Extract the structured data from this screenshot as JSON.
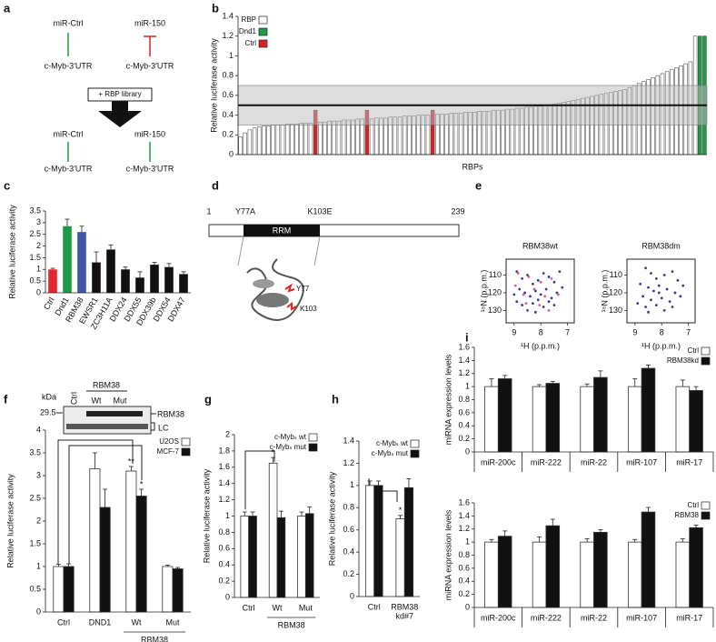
{
  "diagram_a": {
    "panel": "a",
    "top": {
      "left": "miR-Ctrl",
      "right": "miR-150"
    },
    "targets_top": [
      "c-Myb-3′UTR",
      "c-Myb-3′UTR"
    ],
    "step": "+ RBP library",
    "bottom": {
      "left": "miR-Ctrl",
      "right": "miR-150"
    },
    "targets_bottom": [
      "c-Myb-3′UTR",
      "c-Myb-3′UTR"
    ]
  },
  "diagram_d": {
    "panel": "d",
    "start": "1",
    "mutations": [
      "Y77A",
      "K103E"
    ],
    "end": "239",
    "domain": "RRM",
    "residues": [
      "Y77",
      "K103"
    ]
  },
  "blot_f": {
    "header": "RBM38",
    "lanes": [
      "Ctrl",
      "Wt",
      "Mut"
    ],
    "unit": "kDa",
    "marker": "29.5",
    "bands": [
      "RBM38",
      "LC"
    ]
  },
  "chart_data": [
    {
      "panel": "b",
      "type": "bar",
      "ylabel": "Relative luciferase activity",
      "xlabel": "RBPs",
      "ylim": [
        0,
        1.4
      ],
      "yticks": [
        0,
        0.2,
        0.4,
        0.6,
        0.8,
        1,
        1.2,
        1.4
      ],
      "reference_line": 0.5,
      "reference_band": [
        0.3,
        0.7
      ],
      "series": [
        {
          "name": "RBP",
          "color": "#ffffff",
          "values": [
            0.18,
            0.22,
            0.25,
            0.27,
            0.28,
            0.29,
            0.29,
            0.3,
            0.3,
            0.3,
            0.31,
            0.31,
            0.31,
            0.32,
            0.32,
            0.32,
            null,
            0.33,
            0.33,
            0.34,
            0.34,
            0.34,
            0.35,
            0.35,
            0.35,
            0.36,
            0.36,
            null,
            0.36,
            0.37,
            0.37,
            0.37,
            0.38,
            0.38,
            0.38,
            0.39,
            0.39,
            0.39,
            0.4,
            0.4,
            0.4,
            null,
            0.41,
            0.41,
            0.41,
            0.42,
            0.42,
            0.42,
            0.43,
            0.43,
            0.43,
            0.44,
            0.44,
            0.44,
            0.45,
            0.45,
            0.45,
            0.46,
            0.46,
            0.47,
            0.47,
            0.48,
            0.48,
            0.49,
            0.49,
            0.5,
            0.5,
            0.51,
            0.52,
            0.53,
            0.54,
            0.55,
            0.56,
            0.57,
            0.58,
            0.59,
            0.6,
            0.61,
            0.62,
            0.63,
            0.64,
            0.65,
            0.66,
            0.68,
            0.7,
            0.72,
            0.74,
            0.76,
            0.78,
            0.8,
            0.82,
            0.84,
            0.86,
            0.88,
            0.9,
            0.92,
            0.94,
            1.2,
            null,
            null
          ]
        },
        {
          "name": "Dnd1",
          "color": "#1f9a47",
          "values": [
            null,
            null,
            null,
            null,
            null,
            null,
            null,
            null,
            null,
            null,
            null,
            null,
            null,
            null,
            null,
            null,
            null,
            null,
            null,
            null,
            null,
            null,
            null,
            null,
            null,
            null,
            null,
            null,
            null,
            null,
            null,
            null,
            null,
            null,
            null,
            null,
            null,
            null,
            null,
            null,
            null,
            null,
            null,
            null,
            null,
            null,
            null,
            null,
            null,
            null,
            null,
            null,
            null,
            null,
            null,
            null,
            null,
            null,
            null,
            null,
            null,
            null,
            null,
            null,
            null,
            null,
            null,
            null,
            null,
            null,
            null,
            null,
            null,
            null,
            null,
            null,
            null,
            null,
            null,
            null,
            null,
            null,
            null,
            null,
            null,
            null,
            null,
            null,
            null,
            null,
            null,
            null,
            null,
            null,
            null,
            null,
            null,
            null,
            1.2,
            1.2
          ]
        },
        {
          "name": "Ctrl",
          "color": "#d9232a",
          "values": [
            null,
            null,
            null,
            null,
            null,
            null,
            null,
            null,
            null,
            null,
            null,
            null,
            null,
            null,
            null,
            null,
            0.45,
            null,
            null,
            null,
            null,
            null,
            null,
            null,
            null,
            null,
            null,
            0.45,
            null,
            null,
            null,
            null,
            null,
            null,
            null,
            null,
            null,
            null,
            null,
            null,
            null,
            0.45,
            null,
            null,
            null,
            null,
            null,
            null,
            null,
            null,
            null,
            null,
            null,
            null,
            null,
            null,
            null,
            null,
            null,
            null,
            null,
            null,
            null,
            null,
            null,
            null,
            null,
            null,
            null,
            null,
            null,
            null,
            null,
            null,
            null,
            null,
            null,
            null,
            null,
            null,
            null,
            null,
            null,
            null,
            null,
            null,
            null,
            null,
            null,
            null,
            null,
            null,
            null,
            null,
            null,
            null,
            null,
            null,
            null,
            null
          ]
        }
      ]
    },
    {
      "panel": "c",
      "type": "bar",
      "ylabel": "Relative luciferase activity",
      "categories": [
        "Ctrl",
        "Dnd1",
        "RBM38",
        "EWSR1",
        "ZC3H11A",
        "DDX24",
        "DDX55",
        "DDX39b",
        "DDX54",
        "DDX47"
      ],
      "values": [
        1.0,
        2.85,
        2.6,
        1.3,
        1.85,
        1.0,
        0.65,
        1.2,
        1.1,
        0.8
      ],
      "errors": [
        0.05,
        0.3,
        0.25,
        0.45,
        0.2,
        0.1,
        0.25,
        0.1,
        0.15,
        0.1
      ],
      "colors": [
        "#e4262c",
        "#1f9a47",
        "#3d56a6",
        "#111111",
        "#111111",
        "#111111",
        "#111111",
        "#111111",
        "#111111",
        "#111111"
      ],
      "ylim": [
        0,
        3.5
      ],
      "yticks": [
        0,
        0.5,
        1,
        1.5,
        2,
        2.5,
        3,
        3.5
      ]
    },
    {
      "panel": "e",
      "type": "scatter",
      "title": "RBM38wt",
      "xlabel": "¹H (p.p.m.)",
      "ylabel": "¹⁵N (p.p.m.)",
      "xlim": [
        9.3,
        6.75
      ],
      "ylim": [
        137,
        101
      ],
      "xticks": [
        9,
        8,
        7
      ],
      "yticks": [
        110,
        120,
        130
      ],
      "series": [
        {
          "color": "#3a3a9a",
          "x": [
            8.9,
            8.7,
            8.5,
            8.3,
            8.1,
            7.9,
            7.7,
            7.5,
            7.3,
            8.8,
            8.6,
            8.4,
            8.2,
            8.0,
            7.8,
            7.6,
            7.4,
            8.9,
            8.7,
            8.3,
            8.1,
            7.9,
            7.7,
            8.5,
            8.2,
            7.5,
            9.0,
            7.2
          ],
          "values": [
            108,
            112,
            110,
            115,
            113,
            109,
            111,
            114,
            108,
            118,
            120,
            122,
            119,
            121,
            118,
            123,
            120,
            125,
            127,
            126,
            124,
            128,
            125,
            130,
            131,
            127,
            121,
            117
          ]
        },
        {
          "color": "#d9608a",
          "x": [
            8.85,
            8.45,
            8.0,
            7.6,
            8.65,
            8.25,
            7.85,
            8.55,
            8.05,
            7.7,
            7.35,
            8.95
          ],
          "values": [
            109,
            111,
            114,
            112,
            121,
            118,
            122,
            126,
            127,
            130,
            121,
            116
          ]
        }
      ]
    },
    {
      "type": "scatter",
      "title": "RBM38dm",
      "xlabel": "¹H (p.p.m.)",
      "ylabel": "¹⁵N (p.p.m.)",
      "xlim": [
        9.3,
        6.75
      ],
      "ylim": [
        137,
        101
      ],
      "xticks": [
        9,
        8,
        7
      ],
      "yticks": [
        110,
        120,
        130
      ],
      "series": [
        {
          "color": "#3a3a9a",
          "x": [
            8.6,
            8.4,
            8.2,
            7.9,
            7.6,
            7.4,
            8.8,
            8.5,
            8.3,
            8.1,
            7.8,
            7.5,
            8.7,
            8.4,
            8.0,
            7.7,
            7.3,
            8.9,
            8.6,
            8.2,
            7.9,
            8.5,
            7.6,
            8.1,
            7.2
          ],
          "values": [
            106,
            109,
            112,
            110,
            108,
            113,
            115,
            117,
            119,
            116,
            118,
            120,
            122,
            124,
            123,
            125,
            122,
            126,
            128,
            127,
            130,
            131,
            128,
            120,
            116
          ]
        }
      ]
    },
    {
      "panel": "f",
      "type": "bar",
      "ylabel": "Relative luciferase activity",
      "categories": [
        "Ctrl",
        "DND1",
        "Wt",
        "Mut"
      ],
      "category_groups": [
        {
          "label": "RBM38",
          "categories": [
            2,
            3
          ]
        }
      ],
      "ylim": [
        0,
        4
      ],
      "yticks": [
        0,
        0.5,
        1,
        1.5,
        2,
        2.5,
        3,
        3.5,
        4
      ],
      "series": [
        {
          "name": "U2OS",
          "color": "#ffffff",
          "values": [
            1.0,
            3.15,
            3.1,
            1.0
          ],
          "errors": [
            0.05,
            0.35,
            0.1,
            0.03
          ],
          "significance": [
            null,
            null,
            "**",
            null
          ]
        },
        {
          "name": "MCF-7",
          "color": "#111111",
          "values": [
            1.0,
            2.3,
            2.55,
            0.95
          ],
          "errors": [
            0.06,
            0.4,
            0.15,
            0.03
          ],
          "significance": [
            null,
            null,
            "*",
            null
          ]
        }
      ]
    },
    {
      "panel": "g",
      "type": "bar",
      "ylabel": "Relative luciferase activity",
      "categories": [
        "Ctrl",
        "Wt",
        "Mut"
      ],
      "category_groups": [
        {
          "label": "RBM38",
          "categories": [
            1,
            2
          ]
        }
      ],
      "ylim": [
        0,
        2
      ],
      "yticks": [
        0,
        0.2,
        0.4,
        0.6,
        0.8,
        1,
        1.2,
        1.4,
        1.6,
        1.8,
        2
      ],
      "series": [
        {
          "name": "c-Mybₛ wt",
          "color": "#ffffff",
          "values": [
            1.0,
            1.65,
            1.0
          ],
          "errors": [
            0.05,
            0.07,
            0.05
          ],
          "significance": [
            null,
            "*",
            null
          ]
        },
        {
          "name": "c-Mybₛ mut",
          "color": "#111111",
          "values": [
            1.0,
            0.98,
            1.03
          ],
          "errors": [
            0.05,
            0.08,
            0.08
          ]
        }
      ]
    },
    {
      "panel": "h",
      "type": "bar",
      "ylabel": "Relative luciferase activity",
      "categories": [
        "Ctrl",
        [
          "RBM38",
          "kd#7"
        ]
      ],
      "ylim": [
        0,
        1.4
      ],
      "yticks": [
        0,
        0.2,
        0.4,
        0.6,
        0.8,
        1,
        1.2,
        1.4
      ],
      "series": [
        {
          "name": "c-Mybₛ wt",
          "color": "#ffffff",
          "values": [
            1.0,
            0.7
          ],
          "errors": [
            0.04,
            0.03
          ],
          "significance": [
            null,
            "*"
          ]
        },
        {
          "name": "c-Mybₛ mut",
          "color": "#111111",
          "values": [
            1.0,
            0.98
          ],
          "errors": [
            0.04,
            0.08
          ]
        }
      ]
    },
    {
      "panel": "i",
      "type": "bar",
      "ylabel": "miRNA expression levels",
      "categories": [
        "miR-200c",
        "miR-222",
        "miR-22",
        "miR-107",
        "miR-17"
      ],
      "ylim": [
        0,
        1.6
      ],
      "yticks": [
        0,
        0.2,
        0.4,
        0.6,
        0.8,
        1,
        1.2,
        1.4,
        1.6
      ],
      "series": [
        {
          "name": "Ctrl",
          "color": "#ffffff",
          "values": [
            1,
            1,
            1,
            1,
            1
          ],
          "errors": [
            0.12,
            0.03,
            0.04,
            0.12,
            0.1
          ]
        },
        {
          "name": "RBM38kd",
          "color": "#111111",
          "values": [
            1.12,
            1.05,
            1.14,
            1.28,
            0.94
          ],
          "errors": [
            0.05,
            0.03,
            0.1,
            0.05,
            0.06
          ]
        }
      ]
    },
    {
      "type": "bar",
      "ylabel": "miRNA expression levels",
      "categories": [
        "miR-200c",
        "miR-222",
        "miR-22",
        "miR-107",
        "miR-17"
      ],
      "ylim": [
        0,
        1.6
      ],
      "yticks": [
        0,
        0.2,
        0.4,
        0.6,
        0.8,
        1,
        1.2,
        1.4,
        1.6
      ],
      "series": [
        {
          "name": "Ctrl",
          "color": "#ffffff",
          "values": [
            1,
            1,
            1,
            1,
            1
          ],
          "errors": [
            0.04,
            0.08,
            0.05,
            0.04,
            0.05
          ]
        },
        {
          "name": "RBM38",
          "color": "#111111",
          "values": [
            1.09,
            1.25,
            1.15,
            1.46,
            1.22
          ],
          "errors": [
            0.08,
            0.1,
            0.04,
            0.07,
            0.04
          ]
        }
      ]
    }
  ]
}
